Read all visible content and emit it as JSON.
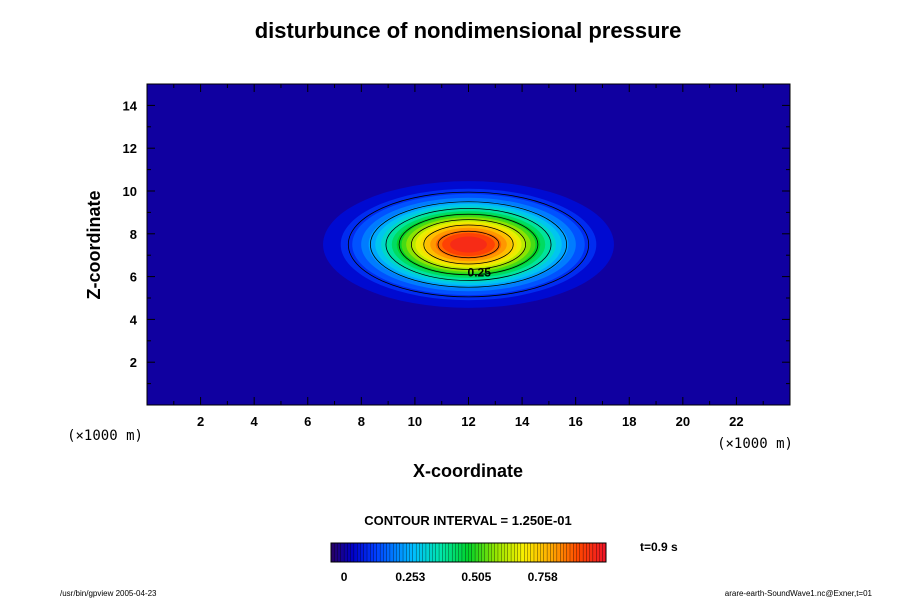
{
  "chart_data": {
    "type": "heatmap",
    "title": "disturbunce of nondimensional pressure",
    "xlabel": "X-coordinate",
    "ylabel": "Z-coordinate",
    "x_unit": "(×1000 m)",
    "y_unit": "(×1000 m)",
    "xlim": [
      0,
      24
    ],
    "ylim": [
      0,
      15
    ],
    "x_ticks": [
      "2",
      "4",
      "6",
      "8",
      "10",
      "12",
      "14",
      "16",
      "18",
      "20",
      "22"
    ],
    "y_ticks": [
      "2",
      "4",
      "6",
      "8",
      "10",
      "12",
      "14"
    ],
    "field": {
      "shape": "gaussian",
      "center_x": 12,
      "center_z": 7.5,
      "peak": 1.0,
      "width_x": 2.2,
      "width_z": 1.2
    },
    "contour_levels": [
      0.125,
      0.25,
      0.375,
      0.5,
      0.625,
      0.75,
      0.875
    ],
    "contour_label": "0.25",
    "contour_label_pos": [
      12.4,
      6.2
    ],
    "contour_interval_text": "CONTOUR INTERVAL = 1.250E-01",
    "colorbar": {
      "min": -0.05,
      "max": 1.0,
      "tick_values": [
        0,
        0.253,
        0.505,
        0.758
      ],
      "tick_labels": [
        "0",
        "0.253",
        "0.505",
        "0.758"
      ]
    },
    "time_label": "t=0.9 s",
    "footer_left": "/usr/bin/gpview 2005-04-23",
    "footer_right": "arare-earth-SoundWave1.nc@Exner,t=01"
  }
}
